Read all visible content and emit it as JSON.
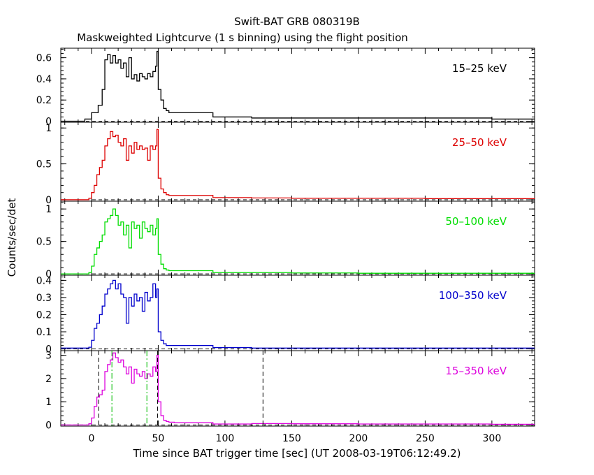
{
  "chart_data": {
    "type": "line",
    "title": "Swift-BAT GRB 080319B",
    "subtitle": "Maskweighted Lightcurve (1 s binning) using the flight position",
    "xlabel": "Time since BAT trigger time [sec] (UT 2008-03-19T06:12:49.2)",
    "ylabel": "Counts/sec/det",
    "xlim": [
      -23,
      332
    ],
    "xticks": [
      0,
      50,
      100,
      150,
      200,
      250,
      300
    ],
    "xtick_labels": [
      "0",
      "50",
      "100",
      "150",
      "200",
      "250",
      "300"
    ],
    "panels": [
      {
        "name": "15-25 keV",
        "label": "15–25 keV",
        "color": "#000000",
        "ylim": [
          -0.01,
          0.69
        ],
        "yticks": [
          0,
          0.2,
          0.4,
          0.6
        ],
        "ytick_labels": [
          "0",
          "0.2",
          "0.4",
          "0.6"
        ],
        "x": [
          -23,
          -5,
          0,
          5,
          8,
          10,
          12,
          14,
          16,
          18,
          20,
          22,
          24,
          26,
          28,
          30,
          32,
          34,
          36,
          38,
          40,
          42,
          44,
          46,
          48,
          49,
          50,
          52,
          54,
          56,
          58,
          62,
          90,
          91,
          120,
          150,
          200,
          250,
          300,
          332
        ],
        "values": [
          0.0,
          0.02,
          0.08,
          0.15,
          0.3,
          0.58,
          0.63,
          0.55,
          0.62,
          0.55,
          0.58,
          0.5,
          0.55,
          0.42,
          0.6,
          0.4,
          0.44,
          0.38,
          0.45,
          0.42,
          0.4,
          0.45,
          0.42,
          0.47,
          0.52,
          0.66,
          0.3,
          0.2,
          0.12,
          0.1,
          0.08,
          0.08,
          0.08,
          0.04,
          0.03,
          0.03,
          0.03,
          0.03,
          0.02,
          0.02
        ]
      },
      {
        "name": "25-50 keV",
        "label": "25–50 keV",
        "color": "#dd0000",
        "ylim": [
          -0.02,
          1.08
        ],
        "yticks": [
          0,
          0.5,
          1
        ],
        "ytick_labels": [
          "0",
          "0.5",
          "1"
        ],
        "x": [
          -23,
          -5,
          -2,
          0,
          2,
          4,
          6,
          8,
          10,
          12,
          14,
          16,
          18,
          20,
          22,
          24,
          26,
          28,
          30,
          32,
          34,
          36,
          38,
          40,
          42,
          44,
          46,
          48,
          49,
          50,
          52,
          54,
          56,
          58,
          62,
          90,
          91,
          120,
          150,
          200,
          250,
          300,
          332
        ],
        "values": [
          0.0,
          0.0,
          0.02,
          0.1,
          0.2,
          0.35,
          0.45,
          0.55,
          0.75,
          0.85,
          0.95,
          0.88,
          0.9,
          0.8,
          0.75,
          0.85,
          0.55,
          0.75,
          0.65,
          0.8,
          0.7,
          0.75,
          0.7,
          0.72,
          0.55,
          0.75,
          0.7,
          0.75,
          0.98,
          0.3,
          0.15,
          0.1,
          0.07,
          0.06,
          0.06,
          0.06,
          0.03,
          0.025,
          0.02,
          0.02,
          0.015,
          0.015,
          0.01
        ]
      },
      {
        "name": "50-100 keV",
        "label": "50–100 keV",
        "color": "#00dd00",
        "ylim": [
          -0.02,
          1.12
        ],
        "yticks": [
          0,
          0.5,
          1
        ],
        "ytick_labels": [
          "0",
          "0.5",
          "1"
        ],
        "x": [
          -23,
          -5,
          -2,
          0,
          2,
          4,
          6,
          8,
          10,
          12,
          14,
          16,
          18,
          20,
          22,
          24,
          26,
          28,
          30,
          32,
          34,
          36,
          38,
          40,
          42,
          44,
          46,
          48,
          49,
          50,
          52,
          54,
          56,
          58,
          62,
          90,
          91,
          120,
          150,
          200,
          250,
          300,
          332
        ],
        "values": [
          0.0,
          0.0,
          0.02,
          0.12,
          0.3,
          0.4,
          0.5,
          0.6,
          0.8,
          0.85,
          0.9,
          1.0,
          0.9,
          0.75,
          0.8,
          0.6,
          0.75,
          0.4,
          0.8,
          0.7,
          0.75,
          0.55,
          0.8,
          0.7,
          0.65,
          0.75,
          0.6,
          0.7,
          0.85,
          0.3,
          0.15,
          0.08,
          0.06,
          0.05,
          0.05,
          0.05,
          0.02,
          0.02,
          0.015,
          0.01,
          0.01,
          0.01,
          0.01
        ]
      },
      {
        "name": "100-350 keV",
        "label": "100–350 keV",
        "color": "#0000cc",
        "ylim": [
          -0.01,
          0.43
        ],
        "yticks": [
          0,
          0.1,
          0.2,
          0.3,
          0.4
        ],
        "ytick_labels": [
          "0",
          "0.1",
          "0.2",
          "0.3",
          "0.4"
        ],
        "x": [
          -23,
          -5,
          -2,
          0,
          2,
          4,
          6,
          8,
          10,
          12,
          14,
          16,
          18,
          20,
          22,
          24,
          26,
          28,
          30,
          32,
          34,
          36,
          38,
          40,
          42,
          44,
          46,
          48,
          49,
          50,
          52,
          54,
          56,
          60,
          90,
          91,
          120,
          150,
          200,
          250,
          300,
          332
        ],
        "values": [
          0.005,
          0.005,
          0.01,
          0.05,
          0.12,
          0.15,
          0.2,
          0.25,
          0.32,
          0.35,
          0.38,
          0.4,
          0.35,
          0.38,
          0.32,
          0.3,
          0.15,
          0.3,
          0.25,
          0.32,
          0.28,
          0.3,
          0.22,
          0.33,
          0.28,
          0.3,
          0.38,
          0.3,
          0.35,
          0.1,
          0.05,
          0.03,
          0.02,
          0.02,
          0.02,
          0.008,
          0.005,
          0.005,
          0.005,
          0.005,
          0.005,
          0.005
        ]
      },
      {
        "name": "15-350 keV",
        "label": "15–350 keV",
        "color": "#dd00dd",
        "ylim": [
          -0.05,
          3.2
        ],
        "yticks": [
          0,
          1,
          2,
          3
        ],
        "ytick_labels": [
          "0",
          "1",
          "2",
          "3"
        ],
        "x": [
          -23,
          -5,
          -2,
          0,
          2,
          4,
          6,
          8,
          10,
          12,
          14,
          16,
          18,
          20,
          22,
          24,
          26,
          28,
          30,
          32,
          34,
          36,
          38,
          40,
          42,
          44,
          46,
          48,
          49,
          50,
          52,
          54,
          56,
          58,
          62,
          90,
          91,
          120,
          150,
          200,
          250,
          300,
          332
        ],
        "values": [
          0.0,
          0.0,
          0.05,
          0.3,
          0.8,
          1.2,
          1.3,
          1.5,
          2.3,
          2.6,
          2.8,
          3.1,
          2.9,
          2.7,
          2.8,
          2.5,
          2.2,
          2.5,
          1.8,
          2.4,
          2.2,
          2.1,
          2.3,
          2.0,
          2.2,
          2.1,
          2.5,
          2.3,
          3.0,
          1.0,
          0.4,
          0.2,
          0.15,
          0.12,
          0.1,
          0.1,
          0.04,
          0.06,
          0.05,
          0.04,
          0.04,
          0.03,
          0.03
        ]
      }
    ],
    "markers": [
      {
        "name": "t-start",
        "x": 5.3,
        "color": "#000000",
        "style": "dashed"
      },
      {
        "name": "t90-start",
        "x": 15.3,
        "color": "#00bb00",
        "style": "dashdot"
      },
      {
        "name": "t90-end",
        "x": 41.5,
        "color": "#00bb00",
        "style": "dashdot"
      },
      {
        "name": "t-peak",
        "x": 49.5,
        "color": "#000000",
        "style": "dashed"
      },
      {
        "name": "t-end",
        "x": 128.5,
        "color": "#000000",
        "style": "dashed"
      }
    ]
  }
}
